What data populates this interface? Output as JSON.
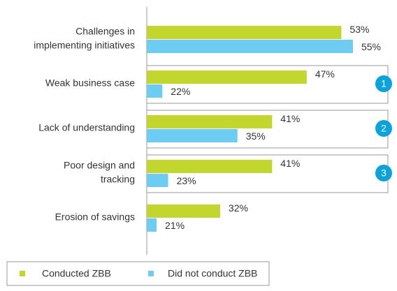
{
  "chart_data": {
    "type": "hbar",
    "categories": [
      [
        "Challenges in",
        "implementing initiatives"
      ],
      [
        "Weak business case"
      ],
      [
        "Lack of understanding"
      ],
      [
        "Poor design and",
        "tracking"
      ],
      [
        "Erosion of savings"
      ]
    ],
    "series": [
      {
        "name": "Conducted ZBB",
        "color": "#c3d62e",
        "values": [
          53,
          47,
          41,
          41,
          32
        ],
        "value_labels": [
          "53%",
          "47%",
          "41%",
          "41%",
          "32%"
        ]
      },
      {
        "name": "Did not conduct ZBB",
        "color": "#6cccf2",
        "values": [
          55,
          22,
          35,
          23,
          21
        ],
        "value_labels": [
          "55%",
          "22%",
          "35%",
          "23%",
          "21%"
        ]
      }
    ],
    "xlim": [
      19.3,
      59
    ],
    "badges": [
      "1",
      "2",
      "3"
    ],
    "badge_color": "#0aa3dc"
  }
}
